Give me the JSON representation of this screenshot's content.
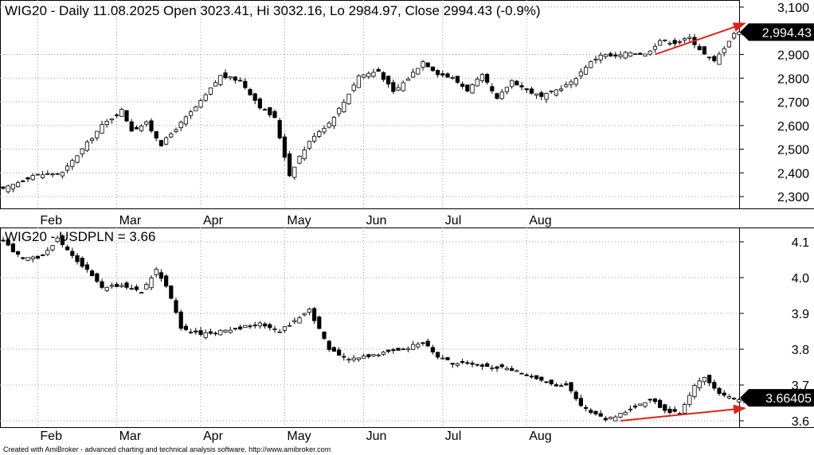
{
  "footer": "Created with AmiBroker - advanced charting and technical analysis software. http://www.amibroker.com",
  "months": [
    "Feb",
    "Mar",
    "Apr",
    "May",
    "Jun",
    "Jul",
    "Aug"
  ],
  "colors": {
    "up": "#ffffff",
    "down": "#000000",
    "trend": "#e0231c",
    "grid": "#9a9a9a",
    "label_bg": "#000000"
  },
  "chart_data": [
    {
      "type": "candlestick",
      "title": "WIG20 - Daily 11.08.2025 Open 3023.41, Hi 3032.16, Lo 2984.97, Close 2994.43 (-0.9%)",
      "ylim": [
        2250,
        3130
      ],
      "y_ticks": [
        "2,300",
        "2,400",
        "2,500",
        "2,600",
        "2,700",
        "2,800",
        "2,900",
        "3,100"
      ],
      "last_label": "2,994.43",
      "grid": true,
      "anchors": [
        [
          0,
          2330
        ],
        [
          6,
          2390
        ],
        [
          12,
          2400
        ],
        [
          16,
          2500
        ],
        [
          20,
          2600
        ],
        [
          24,
          2665
        ],
        [
          26,
          2580
        ],
        [
          29,
          2610
        ],
        [
          32,
          2520
        ],
        [
          36,
          2610
        ],
        [
          40,
          2700
        ],
        [
          44,
          2810
        ],
        [
          48,
          2790
        ],
        [
          52,
          2680
        ],
        [
          55,
          2630
        ],
        [
          58,
          2390
        ],
        [
          60,
          2470
        ],
        [
          63,
          2560
        ],
        [
          66,
          2610
        ],
        [
          69,
          2700
        ],
        [
          72,
          2810
        ],
        [
          76,
          2830
        ],
        [
          79,
          2740
        ],
        [
          82,
          2800
        ],
        [
          85,
          2870
        ],
        [
          88,
          2820
        ],
        [
          91,
          2800
        ],
        [
          94,
          2750
        ],
        [
          97,
          2810
        ],
        [
          100,
          2710
        ],
        [
          103,
          2790
        ],
        [
          106,
          2750
        ],
        [
          109,
          2720
        ],
        [
          112,
          2750
        ],
        [
          115,
          2780
        ],
        [
          118,
          2850
        ],
        [
          121,
          2900
        ],
        [
          124,
          2890
        ],
        [
          127,
          2910
        ],
        [
          130,
          2900
        ],
        [
          133,
          2960
        ],
        [
          136,
          2950
        ],
        [
          139,
          2970
        ],
        [
          142,
          2900
        ],
        [
          144,
          2870
        ],
        [
          146,
          2930
        ],
        [
          148,
          2990
        ],
        [
          150,
          2994
        ]
      ],
      "trendline": {
        "from": [
          132,
          2900
        ],
        "to": [
          150,
          3030
        ]
      }
    },
    {
      "type": "candlestick",
      "title": "WIG20 - USDPLN = 3.66",
      "ylim": [
        3.58,
        4.14
      ],
      "y_ticks": [
        "3.6",
        "3.7",
        "3.8",
        "3.9",
        "4.0",
        "4.1"
      ],
      "last_label": "3.66405",
      "grid": true,
      "anchors": [
        [
          0,
          4.1
        ],
        [
          4,
          4.05
        ],
        [
          8,
          4.06
        ],
        [
          11,
          4.11
        ],
        [
          14,
          4.06
        ],
        [
          17,
          4.02
        ],
        [
          20,
          3.97
        ],
        [
          24,
          3.98
        ],
        [
          28,
          3.96
        ],
        [
          31,
          4.02
        ],
        [
          33,
          3.98
        ],
        [
          36,
          3.86
        ],
        [
          40,
          3.84
        ],
        [
          44,
          3.85
        ],
        [
          48,
          3.86
        ],
        [
          52,
          3.87
        ],
        [
          56,
          3.85
        ],
        [
          59,
          3.88
        ],
        [
          62,
          3.91
        ],
        [
          66,
          3.8
        ],
        [
          70,
          3.77
        ],
        [
          73,
          3.78
        ],
        [
          77,
          3.79
        ],
        [
          81,
          3.8
        ],
        [
          85,
          3.82
        ],
        [
          88,
          3.78
        ],
        [
          91,
          3.76
        ],
        [
          94,
          3.76
        ],
        [
          98,
          3.75
        ],
        [
          102,
          3.75
        ],
        [
          105,
          3.73
        ],
        [
          108,
          3.72
        ],
        [
          111,
          3.7
        ],
        [
          114,
          3.7
        ],
        [
          117,
          3.64
        ],
        [
          120,
          3.62
        ],
        [
          122,
          3.6
        ],
        [
          125,
          3.62
        ],
        [
          128,
          3.64
        ],
        [
          131,
          3.66
        ],
        [
          134,
          3.63
        ],
        [
          137,
          3.62
        ],
        [
          140,
          3.7
        ],
        [
          142,
          3.72
        ],
        [
          144,
          3.69
        ],
        [
          146,
          3.67
        ],
        [
          148,
          3.66
        ],
        [
          150,
          3.664
        ]
      ],
      "trendline": {
        "from": [
          125,
          3.6
        ],
        "to": [
          150,
          3.635
        ]
      }
    }
  ]
}
